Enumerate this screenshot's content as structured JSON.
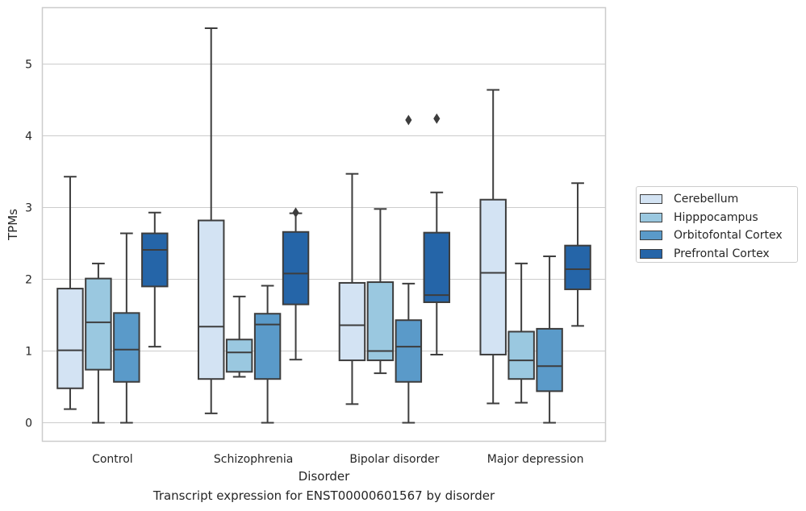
{
  "caption": "Transcript expression for ENST00000601567 by disorder",
  "chart_data": {
    "type": "boxplot",
    "title": "",
    "xlabel": "Disorder",
    "ylabel": "TPMs",
    "ylim": [
      -0.27,
      5.8
    ],
    "yticks": [
      0,
      1,
      2,
      3,
      4,
      5
    ],
    "grid": "horizontal",
    "legend_position": "right",
    "categories": [
      "Control",
      "Schizophrenia",
      "Bipolar disorder",
      "Major depression"
    ],
    "series": [
      {
        "name": "Cerebellum",
        "color": "#d3e3f3",
        "boxes": [
          {
            "whisker_low": 0.19,
            "q1": 0.48,
            "median": 1.01,
            "q3": 1.87,
            "whisker_high": 3.43,
            "outliers": []
          },
          {
            "whisker_low": 0.13,
            "q1": 0.61,
            "median": 1.34,
            "q3": 2.82,
            "whisker_high": 5.5,
            "outliers": []
          },
          {
            "whisker_low": 0.26,
            "q1": 0.87,
            "median": 1.36,
            "q3": 1.95,
            "whisker_high": 3.47,
            "outliers": []
          },
          {
            "whisker_low": 0.27,
            "q1": 0.95,
            "median": 2.09,
            "q3": 3.11,
            "whisker_high": 4.64,
            "outliers": []
          }
        ]
      },
      {
        "name": "Hipppocampus",
        "color": "#9ac8e0",
        "boxes": [
          {
            "whisker_low": 0.0,
            "q1": 0.74,
            "median": 1.4,
            "q3": 2.01,
            "whisker_high": 2.22,
            "outliers": []
          },
          {
            "whisker_low": 0.64,
            "q1": 0.71,
            "median": 0.98,
            "q3": 1.16,
            "whisker_high": 1.76,
            "outliers": []
          },
          {
            "whisker_low": 0.69,
            "q1": 0.87,
            "median": 1.0,
            "q3": 1.96,
            "whisker_high": 2.98,
            "outliers": []
          },
          {
            "whisker_low": 0.28,
            "q1": 0.61,
            "median": 0.87,
            "q3": 1.27,
            "whisker_high": 2.22,
            "outliers": []
          }
        ]
      },
      {
        "name": "Orbitofontal Cortex",
        "color": "#5a9ac9",
        "boxes": [
          {
            "whisker_low": 0.0,
            "q1": 0.57,
            "median": 1.02,
            "q3": 1.53,
            "whisker_high": 2.64,
            "outliers": []
          },
          {
            "whisker_low": 0.0,
            "q1": 0.61,
            "median": 1.37,
            "q3": 1.52,
            "whisker_high": 1.91,
            "outliers": []
          },
          {
            "whisker_low": 0.0,
            "q1": 0.57,
            "median": 1.06,
            "q3": 1.43,
            "whisker_high": 1.94,
            "outliers": [
              4.22
            ]
          },
          {
            "whisker_low": 0.0,
            "q1": 0.44,
            "median": 0.79,
            "q3": 1.31,
            "whisker_high": 2.32,
            "outliers": []
          }
        ]
      },
      {
        "name": "Prefrontal Cortex",
        "color": "#2565a8",
        "boxes": [
          {
            "whisker_low": 1.06,
            "q1": 1.9,
            "median": 2.41,
            "q3": 2.64,
            "whisker_high": 2.93,
            "outliers": []
          },
          {
            "whisker_low": 0.88,
            "q1": 1.65,
            "median": 2.08,
            "q3": 2.66,
            "whisker_high": 2.92,
            "outliers": [
              2.93
            ]
          },
          {
            "whisker_low": 0.95,
            "q1": 1.68,
            "median": 1.78,
            "q3": 2.65,
            "whisker_high": 3.21,
            "outliers": [
              4.24
            ]
          },
          {
            "whisker_low": 1.35,
            "q1": 1.86,
            "median": 2.14,
            "q3": 2.47,
            "whisker_high": 3.34,
            "outliers": []
          }
        ]
      }
    ]
  }
}
